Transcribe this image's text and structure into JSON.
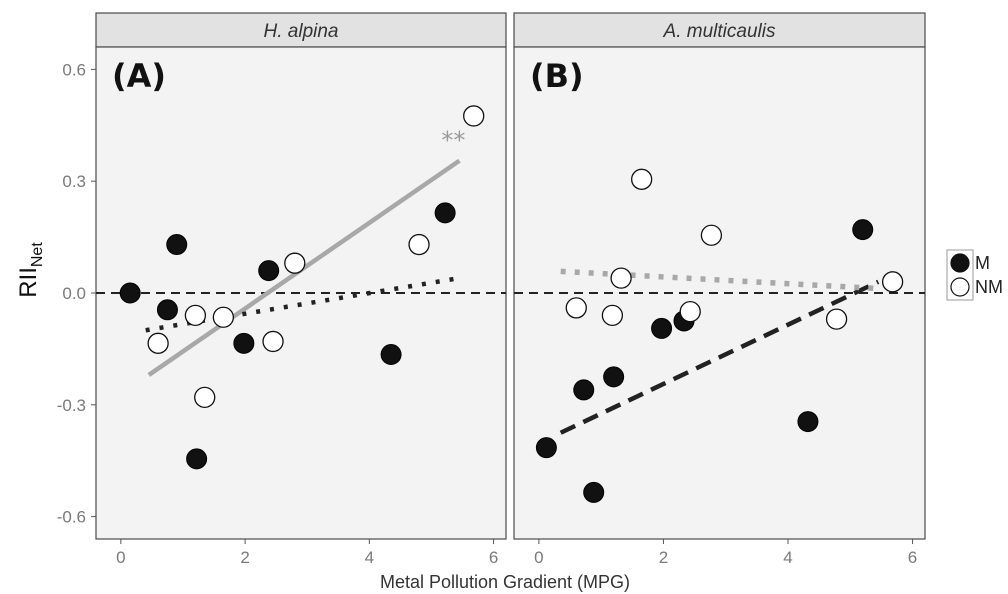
{
  "chart_data": {
    "type": "scatter",
    "xlabel": "Metal Pollution Gradient (MPG)",
    "ylabel_main": "RII",
    "ylabel_sub": "Net",
    "xlim": [
      -0.4,
      6.2
    ],
    "ylim": [
      -0.66,
      0.66
    ],
    "xticks": [
      0,
      2,
      4,
      6
    ],
    "yticks": [
      -0.6,
      -0.3,
      0.0,
      0.3,
      0.6
    ],
    "ytick_labels": [
      "-0.6",
      "-0.3",
      "0.0",
      "0.3",
      "0.6"
    ],
    "reference_line_y": 0,
    "legend": {
      "placement": "right",
      "entries": [
        {
          "label": "M",
          "fill": "#111111"
        },
        {
          "label": "NM",
          "fill": "#ffffff"
        }
      ]
    },
    "colors": {
      "panel_bg": "#f3f3f3",
      "strip_bg": "#e2e2e2",
      "strip_border": "#4a4a4a",
      "m_point": "#111111",
      "nm_point": "#ffffff",
      "gray_line": "#a8a8a8",
      "dark_line": "#222222"
    },
    "panels": [
      {
        "title": "H. alpina",
        "tag": "(A)",
        "points": {
          "M": [
            {
              "x": 0.15,
              "y": 0.0
            },
            {
              "x": 0.75,
              "y": -0.045
            },
            {
              "x": 0.9,
              "y": 0.13
            },
            {
              "x": 1.22,
              "y": -0.445
            },
            {
              "x": 1.98,
              "y": -0.135
            },
            {
              "x": 2.38,
              "y": 0.06
            },
            {
              "x": 4.35,
              "y": -0.165
            },
            {
              "x": 5.22,
              "y": 0.215
            }
          ],
          "NM": [
            {
              "x": 0.6,
              "y": -0.135
            },
            {
              "x": 1.2,
              "y": -0.06
            },
            {
              "x": 1.35,
              "y": -0.28
            },
            {
              "x": 1.65,
              "y": -0.065
            },
            {
              "x": 2.45,
              "y": -0.13
            },
            {
              "x": 2.8,
              "y": 0.08
            },
            {
              "x": 4.8,
              "y": 0.13
            },
            {
              "x": 5.68,
              "y": 0.475
            }
          ]
        },
        "fits": [
          {
            "group": "NM",
            "style": "solid",
            "x": [
              0.45,
              5.45
            ],
            "y": [
              -0.22,
              0.355
            ]
          },
          {
            "group": "M",
            "style": "dotted",
            "x": [
              0.4,
              5.45
            ],
            "y": [
              -0.1,
              0.04
            ]
          }
        ],
        "annotation": "**"
      },
      {
        "title": "A. multicaulis",
        "tag": "(B)",
        "points": {
          "M": [
            {
              "x": 0.12,
              "y": -0.415
            },
            {
              "x": 0.72,
              "y": -0.26
            },
            {
              "x": 0.88,
              "y": -0.535
            },
            {
              "x": 1.2,
              "y": -0.225
            },
            {
              "x": 1.97,
              "y": -0.095
            },
            {
              "x": 2.33,
              "y": -0.075
            },
            {
              "x": 4.32,
              "y": -0.345
            },
            {
              "x": 5.2,
              "y": 0.17
            }
          ],
          "NM": [
            {
              "x": 0.6,
              "y": -0.04
            },
            {
              "x": 1.18,
              "y": -0.06
            },
            {
              "x": 1.32,
              "y": 0.04
            },
            {
              "x": 1.65,
              "y": 0.305
            },
            {
              "x": 2.43,
              "y": -0.05
            },
            {
              "x": 2.77,
              "y": 0.155
            },
            {
              "x": 4.78,
              "y": -0.07
            },
            {
              "x": 5.68,
              "y": 0.03
            }
          ]
        },
        "fits": [
          {
            "group": "M",
            "style": "dashed",
            "x": [
              0.35,
              5.45
            ],
            "y": [
              -0.375,
              0.03
            ]
          },
          {
            "group": "NM",
            "style": "dotted-gray",
            "x": [
              0.35,
              5.45
            ],
            "y": [
              0.058,
              0.012
            ]
          }
        ],
        "annotation": ""
      }
    ]
  }
}
